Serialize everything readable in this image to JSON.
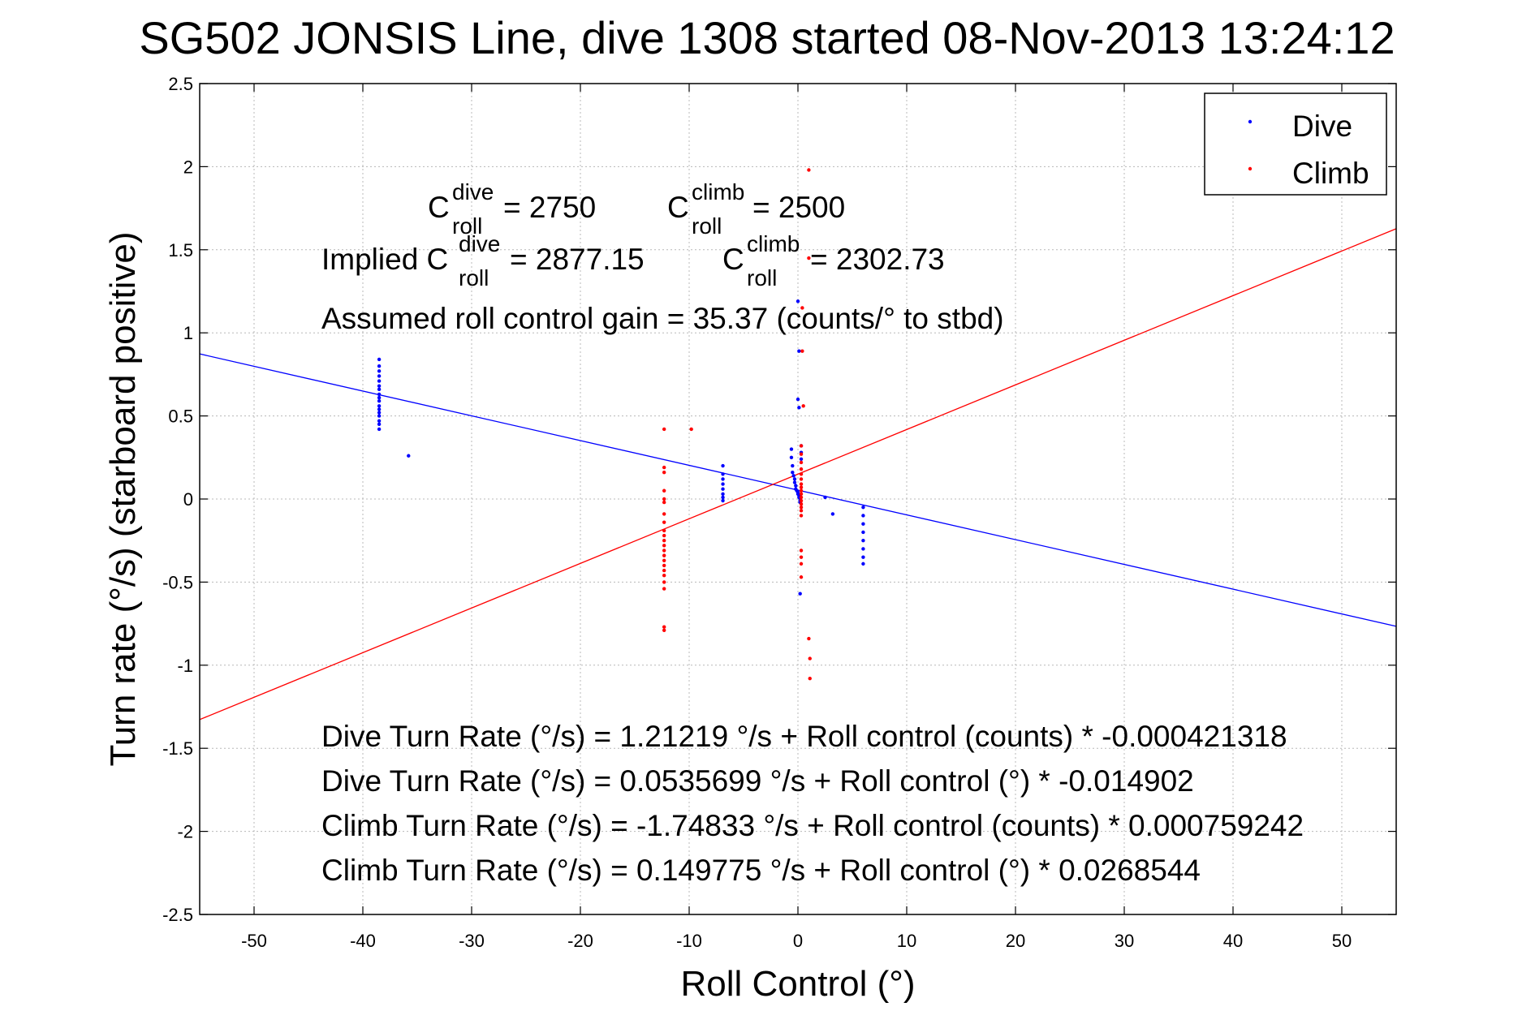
{
  "chart_data": {
    "type": "scatter",
    "title": "SG502 JONSIS Line, dive 1308 started 08-Nov-2013 13:24:12",
    "xlabel": "Roll Control (°)",
    "ylabel": "Turn rate (°/s) (starboard positive)",
    "xlim": [
      -55,
      55
    ],
    "ylim": [
      -2.5,
      2.5
    ],
    "xticks": [
      -50,
      -40,
      -30,
      -20,
      -10,
      0,
      10,
      20,
      30,
      40,
      50
    ],
    "yticks": [
      -2.5,
      -2,
      -1.5,
      -1,
      -0.5,
      0,
      0.5,
      1,
      1.5,
      2,
      2.5
    ],
    "xtick_labels": [
      "-50",
      "-40",
      "-30",
      "-20",
      "-10",
      "0",
      "10",
      "20",
      "30",
      "40",
      "50"
    ],
    "ytick_labels": [
      "-2.5",
      "-2",
      "-1.5",
      "-1",
      "-0.5",
      "0",
      "0.5",
      "1",
      "1.5",
      "2",
      "2.5"
    ],
    "grid": true,
    "legend_position": "top-right",
    "series": [
      {
        "name": "Dive",
        "color": "#0000ff",
        "x": [
          -38.5,
          -38.5,
          -38.5,
          -38.5,
          -38.5,
          -38.5,
          -38.5,
          -38.5,
          -38.5,
          -38.5,
          -38.5,
          -38.5,
          -38.5,
          -38.5,
          -38.5,
          -38.5,
          -38.5,
          -35.8,
          -6.9,
          -6.9,
          -6.9,
          -6.9,
          -6.9,
          -6.9,
          -6.9,
          -6.9,
          -0.6,
          -0.6,
          -0.5,
          -0.5,
          -0.4,
          -0.3,
          -0.3,
          -0.2,
          -0.2,
          -0.1,
          0,
          0,
          0.1,
          0.1,
          0.2,
          0.2,
          0.2,
          0.3,
          0.3,
          0.3,
          0,
          0.1,
          0,
          0.1,
          0.2,
          2.5,
          3.2,
          6,
          6,
          6,
          6,
          6,
          6,
          6,
          6
        ],
        "y": [
          0.84,
          0.8,
          0.77,
          0.74,
          0.71,
          0.68,
          0.66,
          0.63,
          0.61,
          0.59,
          0.56,
          0.54,
          0.52,
          0.5,
          0.47,
          0.45,
          0.42,
          0.26,
          0.2,
          0.15,
          0.12,
          0.09,
          0.06,
          0.03,
          0.01,
          -0.01,
          0.3,
          0.25,
          0.2,
          0.16,
          0.14,
          0.12,
          0.1,
          0.08,
          0.06,
          0.05,
          0.04,
          0.03,
          0.02,
          0.01,
          0.0,
          -0.01,
          -0.02,
          0.32,
          0.28,
          0.24,
          1.19,
          0.89,
          0.6,
          0.55,
          -0.57,
          0.01,
          -0.09,
          -0.05,
          -0.1,
          -0.15,
          -0.2,
          -0.25,
          -0.3,
          -0.35,
          -0.39
        ]
      },
      {
        "name": "Climb",
        "color": "#ff0000",
        "x": [
          -12.3,
          -12.3,
          -12.3,
          -12.3,
          -12.3,
          -12.3,
          -12.3,
          -12.3,
          -12.3,
          -12.3,
          -12.3,
          -12.3,
          -12.3,
          -12.3,
          -12.3,
          -12.3,
          -12.3,
          -12.3,
          -12.3,
          -12.3,
          -12.3,
          -12.3,
          -9.8,
          0.3,
          0.3,
          0.3,
          0.3,
          0.3,
          0.3,
          0.3,
          0.3,
          0.3,
          0.3,
          0.3,
          0.3,
          0.3,
          0.3,
          0.3,
          0.3,
          0.3,
          0.3,
          0.3,
          0.3,
          0.4,
          0.4,
          0.5,
          1.0,
          1.0,
          1.0,
          1.1,
          1.1
        ],
        "y": [
          0.19,
          0.16,
          0.05,
          -0.02,
          -0.09,
          -0.14,
          -0.19,
          -0.22,
          -0.25,
          -0.28,
          -0.31,
          -0.34,
          -0.37,
          -0.4,
          -0.43,
          -0.46,
          -0.5,
          -0.54,
          -0.77,
          -0.79,
          0.42,
          0.0,
          0.42,
          0.32,
          0.27,
          0.22,
          0.18,
          0.15,
          0.12,
          0.09,
          0.07,
          0.05,
          0.03,
          0.01,
          -0.01,
          -0.03,
          -0.05,
          -0.07,
          -0.1,
          -0.31,
          -0.35,
          -0.39,
          -0.47,
          1.15,
          0.89,
          0.56,
          1.98,
          1.45,
          -0.84,
          -0.96,
          -1.08
        ]
      }
    ],
    "fit_lines": [
      {
        "name": "Dive fit",
        "color": "#0000ff",
        "intercept": 0.0535699,
        "slope": -0.014902
      },
      {
        "name": "Climb fit",
        "color": "#ff0000",
        "intercept": 0.149775,
        "slope": 0.0268544
      }
    ],
    "annotations": {
      "c_dive_base": "C",
      "c_dive_sup": "dive",
      "c_dive_sub": "roll",
      "c_dive_val": " = 2750",
      "c_climb_base": "C",
      "c_climb_sup": "climb",
      "c_climb_sub": "roll",
      "c_climb_val": " = 2500",
      "implied_prefix": "Implied C",
      "implied_dive_sup": "dive",
      "implied_dive_sub": "roll",
      "implied_dive_val": " = 2877.15",
      "implied_climb_base": "C",
      "implied_climb_sup": "climb",
      "implied_climb_sub": "roll",
      "implied_climb_val": " = 2302.73",
      "gain": "Assumed roll control gain = 35.37 (counts/° to stbd)",
      "eq1": "Dive Turn Rate (°/s) = 1.21219 °/s + Roll control (counts) * -0.000421318",
      "eq2": "Dive Turn Rate (°/s) = 0.0535699 °/s + Roll control (°) * -0.014902",
      "eq3": "Climb Turn Rate (°/s) = -1.74833 °/s + Roll control (counts) * 0.000759242",
      "eq4": "Climb Turn Rate (°/s) = 0.149775 °/s + Roll control (°) * 0.0268544"
    }
  }
}
